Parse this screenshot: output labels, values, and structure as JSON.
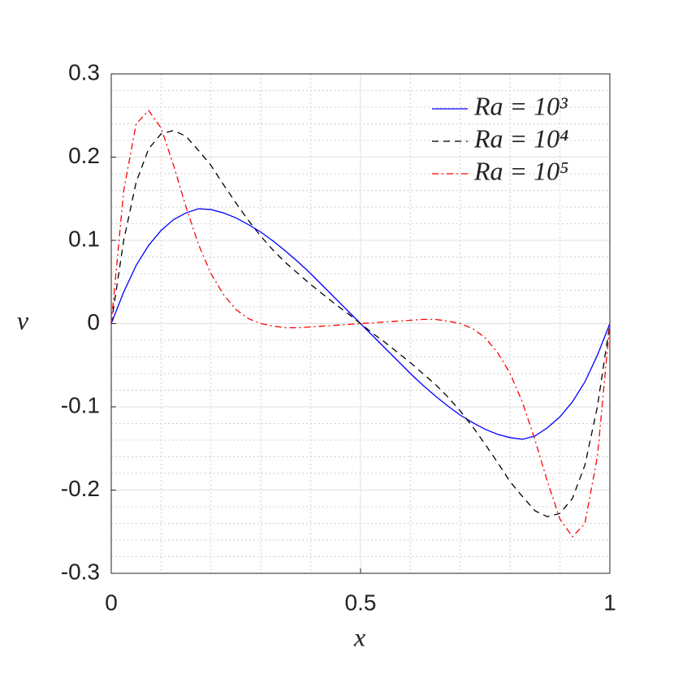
{
  "chart_data": {
    "type": "line",
    "xlabel": "x",
    "ylabel": "v",
    "x": [
      0,
      0.025,
      0.05,
      0.075,
      0.1,
      0.125,
      0.15,
      0.175,
      0.2,
      0.225,
      0.25,
      0.275,
      0.3,
      0.325,
      0.35,
      0.375,
      0.4,
      0.425,
      0.45,
      0.475,
      0.5,
      0.525,
      0.55,
      0.575,
      0.6,
      0.625,
      0.65,
      0.675,
      0.7,
      0.725,
      0.75,
      0.775,
      0.8,
      0.825,
      0.85,
      0.875,
      0.9,
      0.925,
      0.95,
      0.975,
      1
    ],
    "series": [
      {
        "name": "Ra = 10³",
        "color": "#0000ff",
        "style": "solid",
        "values": [
          0,
          0.038,
          0.07,
          0.094,
          0.112,
          0.125,
          0.133,
          0.138,
          0.137,
          0.133,
          0.127,
          0.119,
          0.11,
          0.099,
          0.087,
          0.074,
          0.06,
          0.045,
          0.03,
          0.015,
          0,
          -0.015,
          -0.03,
          -0.045,
          -0.06,
          -0.074,
          -0.087,
          -0.099,
          -0.11,
          -0.119,
          -0.127,
          -0.133,
          -0.137,
          -0.139,
          -0.135,
          -0.125,
          -0.112,
          -0.094,
          -0.07,
          -0.038,
          0
        ]
      },
      {
        "name": "Ra = 10⁴",
        "color": "#000000",
        "style": "dashed",
        "values": [
          0,
          0.1,
          0.17,
          0.21,
          0.228,
          0.232,
          0.225,
          0.208,
          0.19,
          0.167,
          0.145,
          0.124,
          0.105,
          0.088,
          0.073,
          0.06,
          0.047,
          0.035,
          0.023,
          0.012,
          0,
          -0.012,
          -0.023,
          -0.035,
          -0.047,
          -0.06,
          -0.073,
          -0.088,
          -0.105,
          -0.124,
          -0.145,
          -0.167,
          -0.19,
          -0.208,
          -0.225,
          -0.232,
          -0.228,
          -0.21,
          -0.17,
          -0.1,
          0
        ]
      },
      {
        "name": "Ra = 10⁵",
        "color": "#ff0000",
        "style": "dashdot",
        "values": [
          0,
          0.16,
          0.24,
          0.256,
          0.235,
          0.19,
          0.14,
          0.095,
          0.06,
          0.035,
          0.017,
          0.006,
          0,
          -0.003,
          -0.005,
          -0.005,
          -0.004,
          -0.003,
          -0.002,
          -0.001,
          0,
          0.001,
          0.002,
          0.003,
          0.004,
          0.005,
          0.005,
          0.003,
          0,
          -0.006,
          -0.017,
          -0.035,
          -0.06,
          -0.095,
          -0.14,
          -0.19,
          -0.235,
          -0.256,
          -0.24,
          -0.16,
          0
        ]
      }
    ],
    "xlim": [
      0,
      1
    ],
    "ylim": [
      -0.3,
      0.3
    ],
    "xticks": [
      0,
      0.5,
      1
    ],
    "yticks": [
      -0.3,
      -0.2,
      -0.1,
      0,
      0.1,
      0.2,
      0.3
    ],
    "xminorticks": [
      0.1,
      0.2,
      0.3,
      0.4,
      0.6,
      0.7,
      0.8,
      0.9
    ],
    "yminorticks": [
      -0.28,
      -0.26,
      -0.24,
      -0.22,
      -0.18,
      -0.16,
      -0.14,
      -0.12,
      -0.08,
      -0.06,
      -0.04,
      -0.02,
      0.02,
      0.04,
      0.06,
      0.08,
      0.12,
      0.14,
      0.16,
      0.18,
      0.22,
      0.24,
      0.26,
      0.28
    ],
    "grid": true,
    "minor_grid": true,
    "legend": "upper right"
  }
}
